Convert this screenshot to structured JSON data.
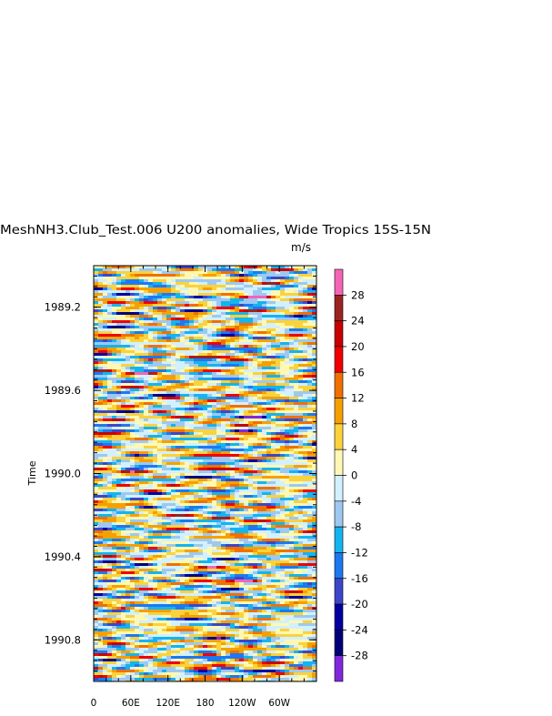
{
  "chart_data": {
    "type": "heatmap",
    "title": "MeshNH3.Club_Test.006 U200 anomalies, Wide Tropics 15S-15N",
    "units": "m/s",
    "ylabel": "Time",
    "xlabel": "",
    "x_ticks": [
      "0",
      "60E",
      "120E",
      "180",
      "120W",
      "60W"
    ],
    "x_tick_degrees": [
      0,
      60,
      120,
      180,
      240,
      300
    ],
    "xlim": [
      0,
      360
    ],
    "y_ticks": [
      "1989.2",
      "1989.6",
      "1990.0",
      "1990.4",
      "1990.8"
    ],
    "y_tick_values": [
      1989.2,
      1989.6,
      1990.0,
      1990.4,
      1990.8
    ],
    "ylim": [
      1989.0,
      1991.0
    ],
    "colorbar": {
      "labels": [
        "28",
        "24",
        "20",
        "16",
        "12",
        "8",
        "4",
        "0",
        "-4",
        "-8",
        "-12",
        "-16",
        "-20",
        "-24",
        "-28"
      ],
      "levels": [
        28,
        24,
        20,
        16,
        12,
        8,
        4,
        0,
        -4,
        -8,
        -12,
        -16,
        -20,
        -24,
        -28
      ],
      "colors_top_to_bottom": [
        "#f564b6",
        "#9b2420",
        "#c80000",
        "#f00000",
        "#f07000",
        "#f5a000",
        "#fad23c",
        "#fff8b4",
        "#d2f0ff",
        "#9ec8f0",
        "#14b4f0",
        "#1e78f0",
        "#3c46c8",
        "#0000a0",
        "#000078",
        "#8228dc"
      ]
    },
    "pattern_summary": "Longitude-time Hovmoller of 200 hPa zonal wind anomalies with alternating positive (orange/red) and negative (blue) bands, mostly within -12 to +16 m/s"
  }
}
